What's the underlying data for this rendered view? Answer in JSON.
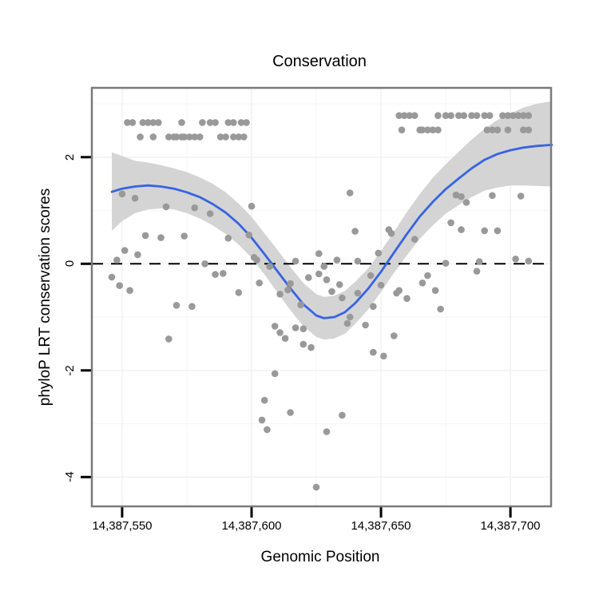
{
  "title": "Conservation",
  "chart_data": {
    "type": "scatter",
    "title": "Conservation",
    "xlabel": "Genomic Position",
    "ylabel": "phyloP LRT conservation scores",
    "x_range": [
      14387538.3,
      14387715.7
    ],
    "y_range": [
      -4.55,
      3.3
    ],
    "grid": true,
    "legend": "none",
    "x_ticks": [
      {
        "value": 14387550,
        "label": "14,387,550"
      },
      {
        "value": 14387600,
        "label": "14,387,600"
      },
      {
        "value": 14387650,
        "label": "14,387,650"
      },
      {
        "value": 14387700,
        "label": "14,387,700"
      }
    ],
    "y_ticks": [
      {
        "value": 2,
        "label": "2"
      },
      {
        "value": 0,
        "label": "0"
      },
      {
        "value": -2,
        "label": "-2"
      },
      {
        "value": -4,
        "label": "-4"
      }
    ],
    "x_minor": [
      14387575,
      14387625,
      14387675
    ],
    "y_minor": [
      3,
      1,
      -1,
      -3
    ],
    "zero_line": 0,
    "colors": {
      "point": "#999999",
      "smooth_line": "#3763E4",
      "confidence_band": "#D4D4D4",
      "zero_line": "#000000",
      "panel_border": "#7A7A7A",
      "grid_major": "#F0F0F0",
      "grid_minor": "#F7F7F7"
    },
    "points": [
      [
        14387552,
        2.65
      ],
      [
        14387554,
        2.65
      ],
      [
        14387558,
        2.65
      ],
      [
        14387560,
        2.65
      ],
      [
        14387562,
        2.65
      ],
      [
        14387564,
        2.65
      ],
      [
        14387573,
        2.65
      ],
      [
        14387581,
        2.65
      ],
      [
        14387584,
        2.65
      ],
      [
        14387586,
        2.65
      ],
      [
        14387591,
        2.65
      ],
      [
        14387593,
        2.65
      ],
      [
        14387596,
        2.65
      ],
      [
        14387598,
        2.65
      ],
      [
        14387557,
        2.38
      ],
      [
        14387562,
        2.38
      ],
      [
        14387568,
        2.38
      ],
      [
        14387570,
        2.38
      ],
      [
        14387571,
        2.38
      ],
      [
        14387573,
        2.38
      ],
      [
        14387574,
        2.38
      ],
      [
        14387576,
        2.38
      ],
      [
        14387578,
        2.38
      ],
      [
        14387580,
        2.38
      ],
      [
        14387588,
        2.38
      ],
      [
        14387590,
        2.38
      ],
      [
        14387593,
        2.38
      ],
      [
        14387595,
        2.38
      ],
      [
        14387597,
        2.38
      ],
      [
        14387657,
        2.78
      ],
      [
        14387659,
        2.78
      ],
      [
        14387661,
        2.78
      ],
      [
        14387663,
        2.78
      ],
      [
        14387672,
        2.78
      ],
      [
        14387675,
        2.78
      ],
      [
        14387677,
        2.78
      ],
      [
        14387680,
        2.78
      ],
      [
        14387682,
        2.78
      ],
      [
        14387685,
        2.78
      ],
      [
        14387687,
        2.78
      ],
      [
        14387690,
        2.78
      ],
      [
        14387692,
        2.78
      ],
      [
        14387697,
        2.78
      ],
      [
        14387699,
        2.78
      ],
      [
        14387701,
        2.78
      ],
      [
        14387703,
        2.78
      ],
      [
        14387705,
        2.78
      ],
      [
        14387707,
        2.78
      ],
      [
        14387658,
        2.51
      ],
      [
        14387665,
        2.51
      ],
      [
        14387666,
        2.51
      ],
      [
        14387668,
        2.51
      ],
      [
        14387670,
        2.51
      ],
      [
        14387672,
        2.51
      ],
      [
        14387691,
        2.51
      ],
      [
        14387693,
        2.51
      ],
      [
        14387695,
        2.51
      ],
      [
        14387699,
        2.51
      ],
      [
        14387705,
        2.51
      ],
      [
        14387707,
        2.51
      ],
      [
        14387550,
        1.31
      ],
      [
        14387555,
        1.23
      ],
      [
        14387567,
        1.07
      ],
      [
        14387578,
        1.05
      ],
      [
        14387584,
        0.94
      ],
      [
        14387600,
        1.08
      ],
      [
        14387559,
        0.53
      ],
      [
        14387565,
        0.49
      ],
      [
        14387574,
        0.52
      ],
      [
        14387591,
        0.48
      ],
      [
        14387599,
        0.54
      ],
      [
        14387551,
        0.25
      ],
      [
        14387556,
        0.17
      ],
      [
        14387548,
        0.07
      ],
      [
        14387546,
        -0.25
      ],
      [
        14387549,
        -0.41
      ],
      [
        14387553,
        -0.5
      ],
      [
        14387582,
        0.0
      ],
      [
        14387586,
        -0.2
      ],
      [
        14387589,
        -0.18
      ],
      [
        14387595,
        -0.54
      ],
      [
        14387571,
        -0.78
      ],
      [
        14387577,
        -0.8
      ],
      [
        14387568,
        -1.41
      ],
      [
        14387601,
        0.12
      ],
      [
        14387602,
        0.07
      ],
      [
        14387607,
        -0.05
      ],
      [
        14387617,
        0.05
      ],
      [
        14387626,
        0.19
      ],
      [
        14387628,
        -0.05
      ],
      [
        14387633,
        0.07
      ],
      [
        14387626,
        -0.19
      ],
      [
        14387622,
        -0.26
      ],
      [
        14387629,
        -0.3
      ],
      [
        14387603,
        -0.36
      ],
      [
        14387611,
        -0.57
      ],
      [
        14387614,
        -0.49
      ],
      [
        14387615,
        -0.37
      ],
      [
        14387619,
        -0.77
      ],
      [
        14387631,
        -0.52
      ],
      [
        14387634,
        -0.39
      ],
      [
        14387635,
        -0.64
      ],
      [
        14387638,
        1.33
      ],
      [
        14387640,
        0.61
      ],
      [
        14387641,
        0.05
      ],
      [
        14387641,
        -0.55
      ],
      [
        14387646,
        -0.22
      ],
      [
        14387649,
        0.2
      ],
      [
        14387653,
        0.64
      ],
      [
        14387654,
        0.57
      ],
      [
        14387650,
        -0.4
      ],
      [
        14387656,
        -0.55
      ],
      [
        14387647,
        -0.8
      ],
      [
        14387638,
        -1.0
      ],
      [
        14387637,
        -1.12
      ],
      [
        14387644,
        -1.15
      ],
      [
        14387609,
        -1.17
      ],
      [
        14387611,
        -1.29
      ],
      [
        14387613,
        -1.4
      ],
      [
        14387617,
        -1.2
      ],
      [
        14387620,
        -1.22
      ],
      [
        14387620,
        -1.51
      ],
      [
        14387623,
        -1.57
      ],
      [
        14387655,
        -1.35
      ],
      [
        14387647,
        -1.66
      ],
      [
        14387651,
        -1.73
      ],
      [
        14387609,
        -2.06
      ],
      [
        14387605,
        -2.56
      ],
      [
        14387615,
        -2.79
      ],
      [
        14387604,
        -2.93
      ],
      [
        14387606,
        -3.11
      ],
      [
        14387635,
        -2.84
      ],
      [
        14387629,
        -3.15
      ],
      [
        14387625,
        -4.19
      ],
      [
        14387673,
        -0.85
      ],
      [
        14387679,
        1.29
      ],
      [
        14387681,
        1.26
      ],
      [
        14387683,
        1.15
      ],
      [
        14387693,
        1.28
      ],
      [
        14387704,
        1.27
      ],
      [
        14387663,
        0.46
      ],
      [
        14387677,
        0.77
      ],
      [
        14387681,
        0.64
      ],
      [
        14387690,
        0.62
      ],
      [
        14387695,
        0.62
      ],
      [
        14387675,
        0.01
      ],
      [
        14387688,
        0.04
      ],
      [
        14387687,
        -0.14
      ],
      [
        14387702,
        0.09
      ],
      [
        14387707,
        0.05
      ],
      [
        14387668,
        -0.22
      ],
      [
        14387666,
        -0.36
      ],
      [
        14387671,
        -0.5
      ],
      [
        14387657,
        -0.5
      ],
      [
        14387660,
        -0.65
      ]
    ],
    "smooth": [
      [
        14387546,
        1.35,
        0.62,
        2.09
      ],
      [
        14387550,
        1.41,
        0.8,
        2.02
      ],
      [
        14387555,
        1.45,
        0.95,
        1.93
      ],
      [
        14387560,
        1.47,
        1.02,
        1.9
      ],
      [
        14387565,
        1.45,
        1.04,
        1.85
      ],
      [
        14387570,
        1.41,
        1.02,
        1.79
      ],
      [
        14387575,
        1.34,
        0.95,
        1.72
      ],
      [
        14387580,
        1.25,
        0.85,
        1.62
      ],
      [
        14387585,
        1.12,
        0.72,
        1.5
      ],
      [
        14387590,
        0.96,
        0.56,
        1.34
      ],
      [
        14387595,
        0.75,
        0.36,
        1.13
      ],
      [
        14387600,
        0.49,
        0.11,
        0.88
      ],
      [
        14387605,
        0.18,
        -0.2,
        0.57
      ],
      [
        14387610,
        -0.14,
        -0.54,
        0.26
      ],
      [
        14387615,
        -0.46,
        -0.87,
        -0.06
      ],
      [
        14387620,
        -0.76,
        -1.17,
        -0.36
      ],
      [
        14387625,
        -0.97,
        -1.37,
        -0.57
      ],
      [
        14387628,
        -1.02,
        -1.42,
        -0.62
      ],
      [
        14387632,
        -1.0,
        -1.4,
        -0.6
      ],
      [
        14387636,
        -0.91,
        -1.31,
        -0.51
      ],
      [
        14387640,
        -0.74,
        -1.13,
        -0.34
      ],
      [
        14387645,
        -0.47,
        -0.86,
        -0.09
      ],
      [
        14387650,
        -0.15,
        -0.53,
        0.24
      ],
      [
        14387655,
        0.21,
        -0.17,
        0.6
      ],
      [
        14387660,
        0.56,
        0.16,
        0.97
      ],
      [
        14387665,
        0.89,
        0.47,
        1.31
      ],
      [
        14387670,
        1.16,
        0.72,
        1.61
      ],
      [
        14387675,
        1.4,
        0.94,
        1.87
      ],
      [
        14387680,
        1.6,
        1.1,
        2.1
      ],
      [
        14387685,
        1.79,
        1.25,
        2.33
      ],
      [
        14387690,
        1.95,
        1.37,
        2.53
      ],
      [
        14387695,
        2.06,
        1.43,
        2.7
      ],
      [
        14387700,
        2.13,
        1.47,
        2.82
      ],
      [
        14387705,
        2.18,
        1.47,
        2.93
      ],
      [
        14387710,
        2.21,
        1.46,
        3.0
      ],
      [
        14387716,
        2.23,
        1.45,
        3.05
      ]
    ]
  }
}
